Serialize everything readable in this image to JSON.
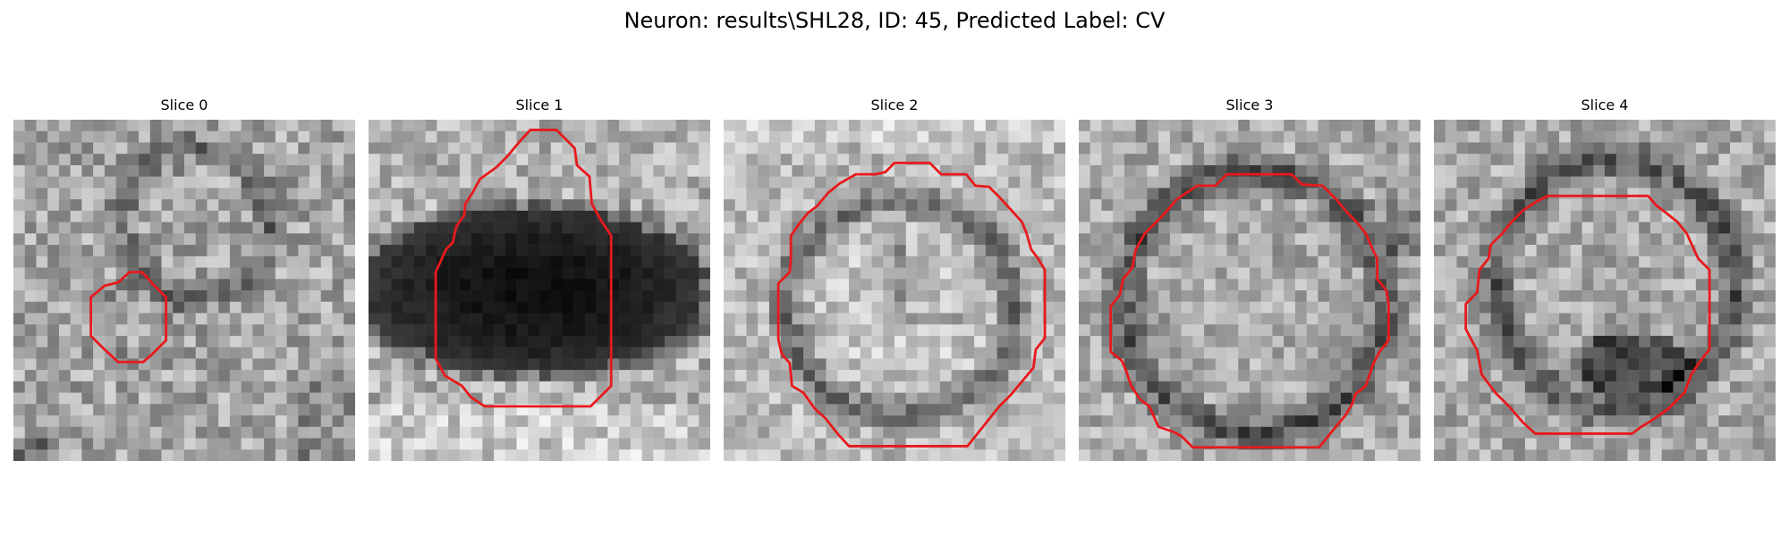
{
  "figure": {
    "title": "Neuron: results\\SHL28, ID: 45, Predicted Label: CV",
    "outline_color": "#e8191c",
    "colormap": "grayscale",
    "panels": [
      {
        "title": "Slice 0",
        "image": "grayscale-em-patch-small-vesicle"
      },
      {
        "title": "Slice 1",
        "image": "grayscale-em-patch-dark-blob"
      },
      {
        "title": "Slice 2",
        "image": "grayscale-em-patch-vesicle-ring"
      },
      {
        "title": "Slice 3",
        "image": "grayscale-em-patch-vesicle-ring"
      },
      {
        "title": "Slice 4",
        "image": "grayscale-em-patch-vesicle-ring"
      }
    ]
  }
}
